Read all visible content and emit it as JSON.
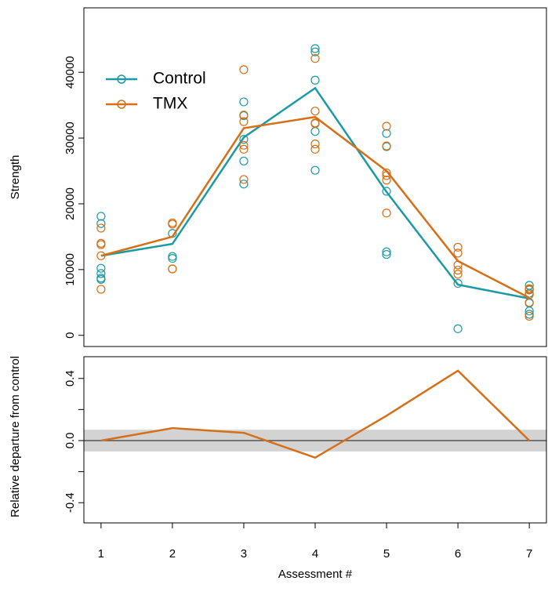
{
  "chart_data": [
    {
      "type": "line",
      "ylabel": "Strength",
      "legend": "top-left",
      "xlim": [
        0.76,
        7.24
      ],
      "ylim": [
        -1700,
        49800
      ],
      "yticks": [
        0,
        10000,
        20000,
        30000,
        40000
      ],
      "x": [
        1,
        2,
        3,
        4,
        5,
        6,
        7
      ],
      "series": [
        {
          "name": "Control",
          "color": "#1c9aa3",
          "values": [
            12100,
            13900,
            30100,
            37600,
            21800,
            7700,
            5600
          ],
          "observations": {
            "x": [
              1,
              1,
              1,
              1,
              1,
              1,
              2,
              2,
              2,
              3,
              3,
              3,
              3,
              3,
              4,
              4,
              4,
              4,
              4,
              5,
              5,
              5,
              5,
              5,
              6,
              6,
              7,
              7,
              7,
              7,
              7,
              7
            ],
            "y": [
              18100,
              17000,
              10200,
              9400,
              8700,
              8500,
              15500,
              12000,
              11700,
              35500,
              33400,
              29800,
              26500,
              23000,
              43600,
              43100,
              38800,
              31000,
              25100,
              30700,
              28700,
              21900,
              12700,
              12300,
              7900,
              1000,
              7600,
              7000,
              6400,
              4900,
              3700,
              3200
            ]
          }
        },
        {
          "name": "TMX",
          "color": "#d66f17",
          "values": [
            12100,
            15000,
            31500,
            33200,
            25000,
            11300,
            5700
          ],
          "observations": {
            "x": [
              1,
              1,
              1,
              1,
              1,
              2,
              2,
              2,
              2,
              3,
              3,
              3,
              3,
              3,
              3,
              4,
              4,
              4,
              4,
              4,
              4,
              5,
              5,
              5,
              5,
              5,
              5,
              6,
              6,
              6,
              6,
              6,
              7,
              7,
              7,
              7,
              7
            ],
            "y": [
              16300,
              14000,
              13800,
              12100,
              7000,
              17100,
              16900,
              10100,
              10100,
              40400,
              33500,
              32500,
              28900,
              28300,
              23700,
              42100,
              34100,
              32300,
              32200,
              29100,
              28300,
              31800,
              28800,
              24700,
              24300,
              23600,
              18600,
              13400,
              12500,
              10700,
              9900,
              9300,
              7100,
              6900,
              6200,
              5000,
              2900
            ]
          }
        }
      ]
    },
    {
      "type": "line",
      "ylabel": "Relative departure from control",
      "xlabel": "Assessment #",
      "xlim": [
        0.76,
        7.24
      ],
      "ylim": [
        -0.53,
        0.54
      ],
      "xticks": [
        1,
        2,
        3,
        4,
        5,
        6,
        7
      ],
      "yticks": [
        -0.4,
        {
          "value": 0,
          "label": "0.0"
        },
        0.4
      ],
      "minor_yticks": [
        -0.2,
        0.2
      ],
      "band": [
        -0.07,
        0.07
      ],
      "band_color": "#d3d3d3",
      "hline": 0,
      "x": [
        1,
        2,
        3,
        4,
        5,
        6,
        7
      ],
      "series": [
        {
          "color": "#d66f17",
          "values": [
            0,
            0.08,
            0.05,
            -0.11,
            0.16,
            0.45,
            0
          ]
        }
      ]
    }
  ]
}
